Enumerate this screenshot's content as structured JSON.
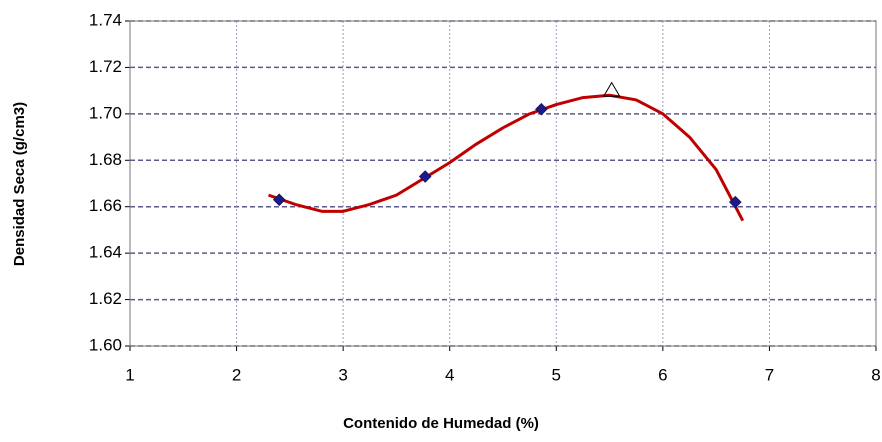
{
  "chart_data": {
    "type": "scatter",
    "xlabel": "Contenido de Humedad (%)",
    "ylabel": "Densidad Seca (g/cm3)",
    "xlim": [
      1,
      8
    ],
    "xticks": [
      1,
      2,
      3,
      4,
      5,
      6,
      7,
      8
    ],
    "ylim": [
      1.6,
      1.74
    ],
    "yticks": [
      {
        "value": 1.6,
        "label": "1.60"
      },
      1.62,
      1.64,
      1.66,
      1.68,
      {
        "value": 1.7,
        "label": "1.70"
      },
      1.72,
      1.74
    ],
    "grid": true,
    "series": [
      {
        "marker": "diamond",
        "color": "#1a1a8c",
        "x": [
          2.4,
          3.77,
          4.86,
          6.68
        ],
        "values": [
          1.663,
          1.673,
          1.702,
          1.662
        ]
      },
      {
        "marker": "triangle",
        "color": "#000000",
        "x": [
          5.52
        ],
        "values": [
          1.71
        ]
      },
      {
        "marker": "line",
        "color": "#c00000",
        "x": [
          2.3,
          2.55,
          2.8,
          3.0,
          3.25,
          3.5,
          3.75,
          4.0,
          4.25,
          4.5,
          4.75,
          5.0,
          5.25,
          5.5,
          5.75,
          6.0,
          6.25,
          6.5,
          6.75
        ],
        "values": [
          1.665,
          1.661,
          1.658,
          1.658,
          1.661,
          1.665,
          1.672,
          1.679,
          1.687,
          1.694,
          1.7,
          1.704,
          1.707,
          1.708,
          1.706,
          1.7,
          1.69,
          1.676,
          1.654
        ]
      }
    ]
  }
}
